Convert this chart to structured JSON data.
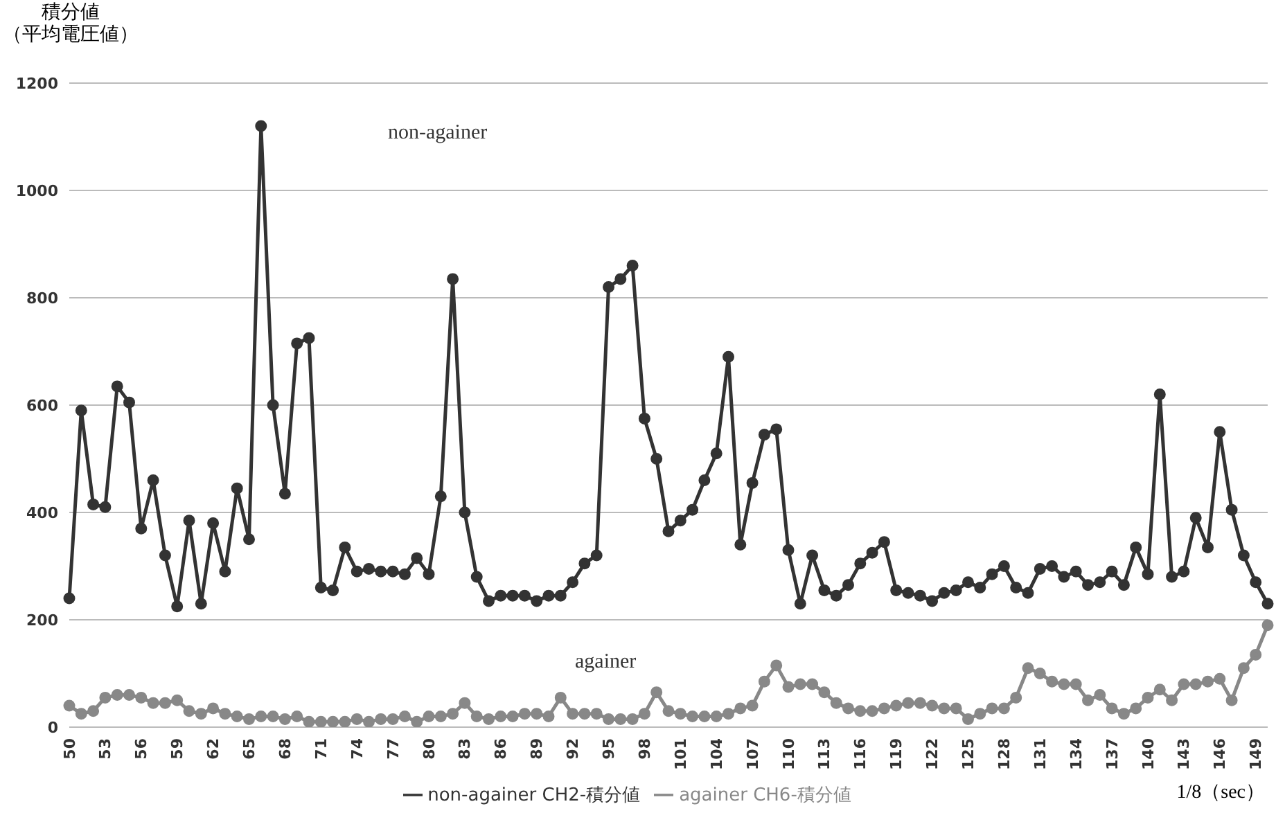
{
  "chart_data": {
    "type": "line",
    "ylabel": "積分値（平均電圧値）",
    "xlabel": "1/8（sec）",
    "categories": [
      "50",
      null,
      null,
      "53",
      null,
      null,
      "56",
      null,
      null,
      "59",
      null,
      null,
      "62",
      null,
      null,
      "65",
      null,
      null,
      "68",
      null,
      null,
      "71",
      null,
      null,
      "74",
      null,
      null,
      "77",
      null,
      null,
      "80",
      null,
      null,
      "83",
      null,
      null,
      "86",
      null,
      null,
      "89",
      null,
      null,
      "92",
      null,
      null,
      "95",
      null,
      null,
      "98",
      null,
      null,
      "101",
      null,
      null,
      "104",
      null,
      null,
      "107",
      null,
      null,
      "110",
      null,
      null,
      "113",
      null,
      null,
      "116",
      null,
      null,
      "119",
      null,
      null,
      "122",
      null,
      null,
      "125",
      null,
      null,
      "128",
      null,
      null,
      "131",
      null,
      null,
      "134",
      null,
      null,
      "137",
      null,
      null,
      "140",
      null,
      null,
      "143",
      null,
      null,
      "146",
      null,
      null,
      "149",
      null
    ],
    "series": [
      {
        "name": "non-againer CH2-積分値",
        "color": "#333333",
        "values": [
          240,
          590,
          415,
          410,
          635,
          605,
          370,
          460,
          320,
          225,
          385,
          230,
          380,
          290,
          445,
          350,
          1120,
          600,
          435,
          715,
          725,
          260,
          255,
          335,
          290,
          295,
          290,
          290,
          285,
          315,
          285,
          430,
          835,
          400,
          280,
          235,
          245,
          245,
          245,
          235,
          245,
          245,
          270,
          305,
          320,
          820,
          835,
          860,
          575,
          500,
          365,
          385,
          405,
          460,
          510,
          690,
          340,
          455,
          545,
          555,
          330,
          230,
          320,
          255,
          245,
          265,
          305,
          325,
          345,
          255,
          250,
          245,
          235,
          250,
          255,
          270,
          260,
          285,
          300,
          260,
          250,
          295,
          300,
          280,
          290,
          265,
          270,
          290,
          265,
          335,
          285,
          620,
          280,
          290,
          390,
          335,
          550,
          405,
          320,
          270,
          230
        ]
      },
      {
        "name": "againer CH6-積分値",
        "color": "#888888",
        "values": [
          40,
          25,
          30,
          55,
          60,
          60,
          55,
          45,
          45,
          50,
          30,
          25,
          35,
          25,
          20,
          15,
          20,
          20,
          15,
          20,
          10,
          10,
          10,
          10,
          15,
          10,
          15,
          15,
          20,
          10,
          20,
          20,
          25,
          45,
          20,
          15,
          20,
          20,
          25,
          25,
          20,
          55,
          25,
          25,
          25,
          15,
          15,
          15,
          25,
          65,
          30,
          25,
          20,
          20,
          20,
          25,
          35,
          40,
          85,
          115,
          75,
          80,
          80,
          65,
          45,
          35,
          30,
          30,
          35,
          40,
          45,
          45,
          40,
          35,
          35,
          15,
          25,
          35,
          35,
          55,
          110,
          100,
          85,
          80,
          80,
          50,
          60,
          35,
          25,
          35,
          55,
          70,
          50,
          80,
          80,
          85,
          90,
          50,
          110,
          135,
          190
        ]
      }
    ],
    "ylim": [
      0,
      1200
    ],
    "yticks": [
      0,
      200,
      400,
      600,
      800,
      1000,
      1200
    ],
    "grid": "y",
    "marker": "circle",
    "legend": "bottom",
    "annotations": [
      "non-againer",
      "againer"
    ]
  }
}
